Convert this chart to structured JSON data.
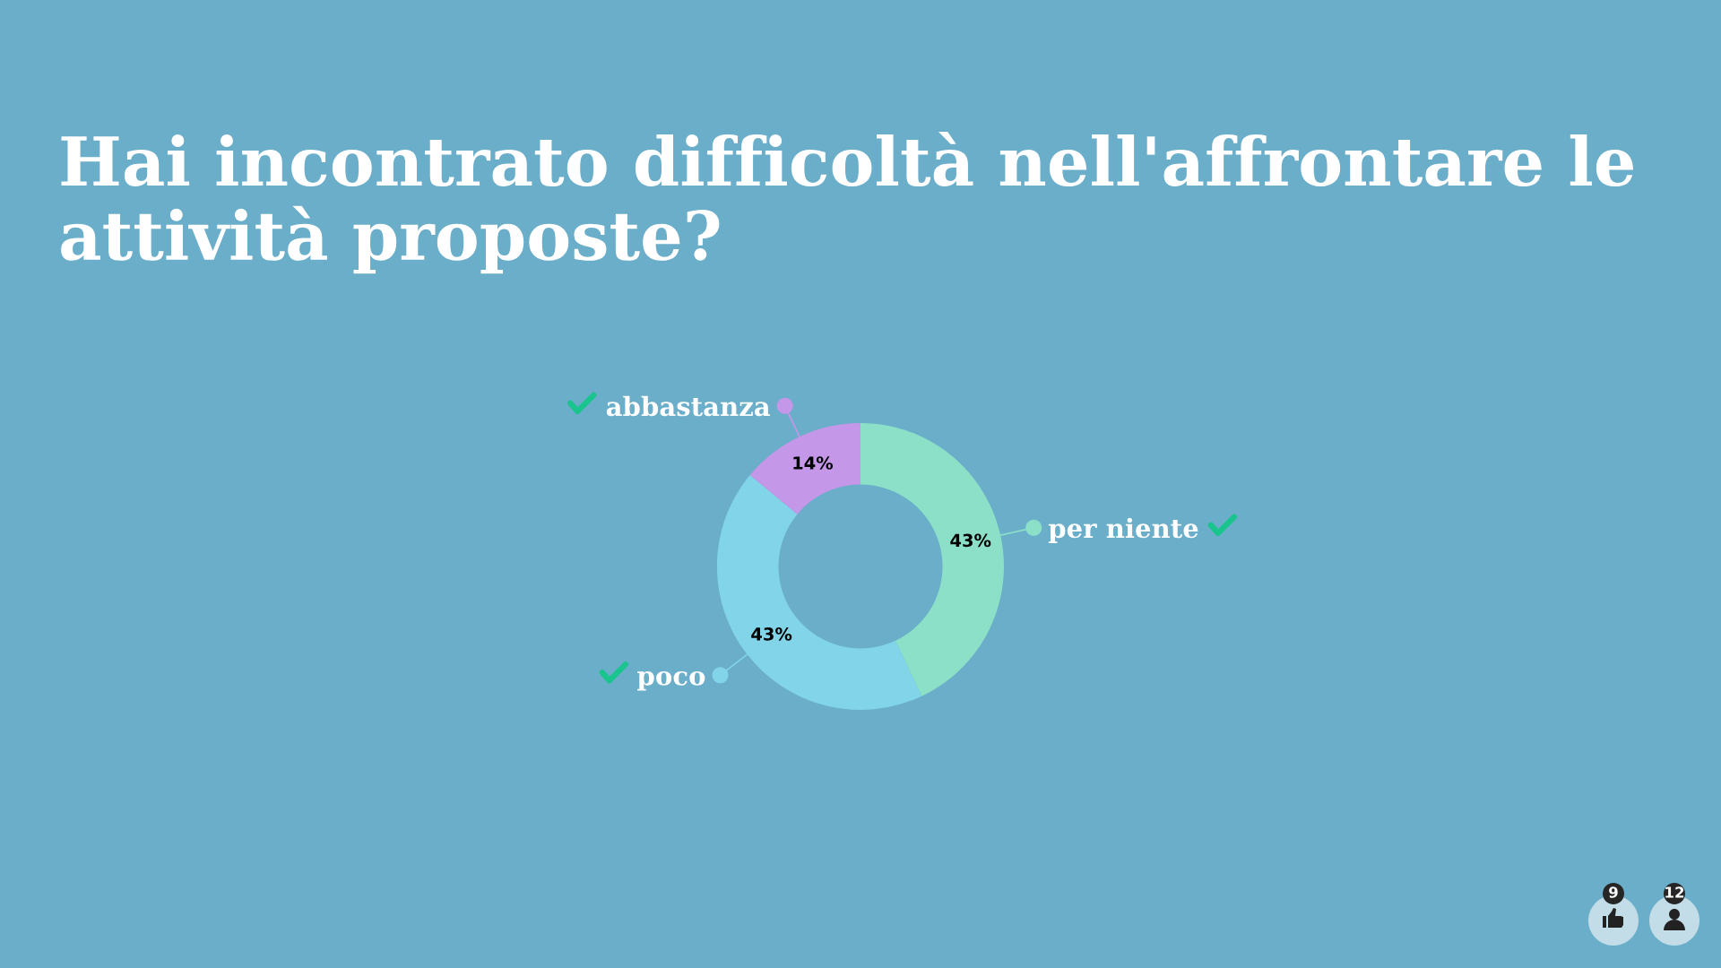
{
  "chart_data": {
    "type": "donut",
    "title": "Hai incontrato difficoltà nell'affrontare le attività proposte?",
    "categories": [
      "per niente",
      "poco",
      "abbastanza"
    ],
    "values": [
      43,
      43,
      14
    ],
    "colors": [
      "#8ce0c8",
      "#82d5e8",
      "#c497e8"
    ],
    "value_labels": [
      "43%",
      "43%",
      "14%"
    ],
    "annotations": [
      "9",
      "12"
    ]
  }
}
